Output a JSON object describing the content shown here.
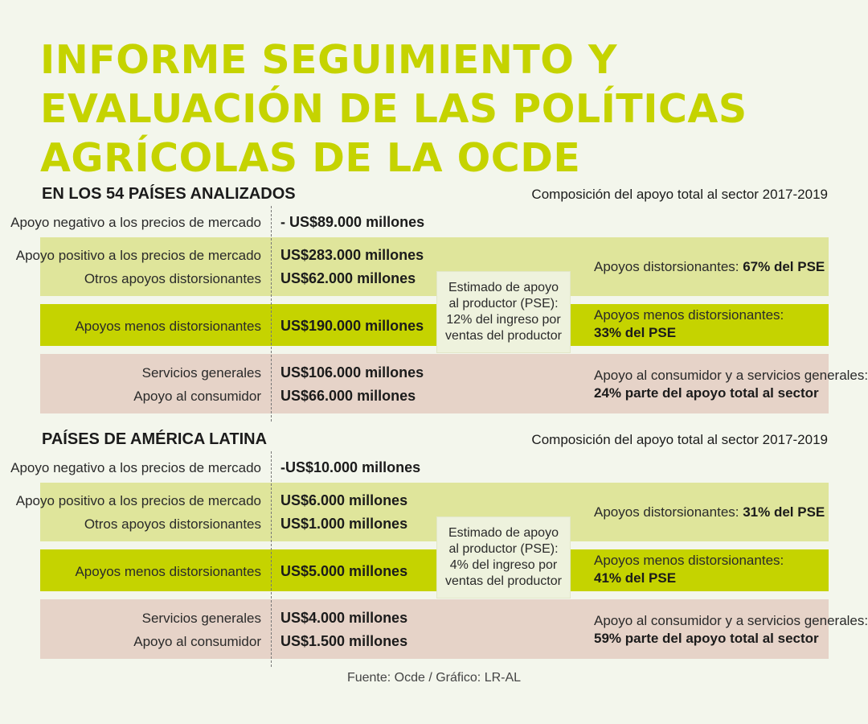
{
  "title_lines": [
    "INFORME SEGUIMIENTO Y",
    "EVALUACIÓN DE LAS POLÍTICAS",
    "AGRÍCOLAS DE LA OCDE"
  ],
  "colors": {
    "accent": "#c5d300",
    "light_band": "#dfe59b",
    "pink_band": "#e6d3c8",
    "background": "#f3f6ec"
  },
  "chart_data": [
    {
      "type": "table",
      "title": "EN LOS 54 PAÍSES ANALIZADOS",
      "subtitle": "Composición del apoyo total al sector 2017-2019",
      "rows": [
        {
          "label": "Apoyo negativo a los precios de mercado",
          "value": "- US$89.000 millones",
          "amount_musd": -89000
        },
        {
          "label": "Apoyo positivo a los precios de mercado",
          "value": "US$283.000 millones",
          "amount_musd": 283000
        },
        {
          "label": "Otros apoyos distorsionantes",
          "value": "US$62.000 millones",
          "amount_musd": 62000
        },
        {
          "label": "Apoyos menos distorsionantes",
          "value": "US$190.000 millones",
          "amount_musd": 190000
        },
        {
          "label": "Servicios generales",
          "value": "US$106.000 millones",
          "amount_musd": 106000
        },
        {
          "label": "Apoyo al consumidor",
          "value": "US$66.000 millones",
          "amount_musd": 66000
        }
      ],
      "pse_box": [
        "Estimado de apoyo",
        "al productor (PSE):",
        "12% del ingreso por",
        "ventas del productor"
      ],
      "summary": {
        "distorting_label": "Apoyos distorsionantes: ",
        "distorting_value": "67% del PSE",
        "less_label": "Apoyos menos distorsionantes:",
        "less_value": "33% del PSE",
        "consumer_label": "Apoyo al consumidor y a servicios generales:",
        "consumer_value": "24% parte del apoyo total al sector"
      }
    },
    {
      "type": "table",
      "title": "PAÍSES DE AMÉRICA LATINA",
      "subtitle": "Composición del apoyo total al sector 2017-2019",
      "rows": [
        {
          "label": "Apoyo negativo a los precios de mercado",
          "value": "-US$10.000 millones",
          "amount_musd": -10000
        },
        {
          "label": "Apoyo positivo a los precios de mercado",
          "value": "US$6.000 millones",
          "amount_musd": 6000
        },
        {
          "label": "Otros apoyos distorsionantes",
          "value": "US$1.000 millones",
          "amount_musd": 1000
        },
        {
          "label": "Apoyos menos distorsionantes",
          "value": "US$5.000 millones",
          "amount_musd": 5000
        },
        {
          "label": "Servicios generales",
          "value": "US$4.000 millones",
          "amount_musd": 4000
        },
        {
          "label": "Apoyo al consumidor",
          "value": "US$1.500 millones",
          "amount_musd": 1500
        }
      ],
      "pse_box": [
        "Estimado de apoyo",
        "al productor (PSE):",
        "4% del ingreso por",
        "ventas del productor"
      ],
      "summary": {
        "distorting_label": "Apoyos distorsionantes: ",
        "distorting_value": "31% del PSE",
        "less_label": "Apoyos menos distorsionantes:",
        "less_value": "41% del PSE",
        "consumer_label": "Apoyo al consumidor y a servicios generales:",
        "consumer_value": "59% parte del apoyo total al sector"
      }
    }
  ],
  "source": "Fuente: Ocde / Gráfico: LR-AL"
}
